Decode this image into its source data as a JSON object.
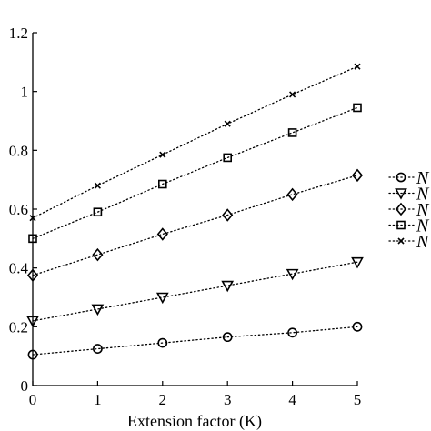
{
  "chart_data": {
    "type": "line",
    "xlabel": "Extension factor (K)",
    "ylabel": "",
    "xlim": [
      0,
      5
    ],
    "ylim": [
      0,
      1.2
    ],
    "x_ticks": [
      "0",
      "1",
      "2",
      "3",
      "4",
      "5"
    ],
    "y_ticks": [
      "0",
      "0.2",
      "0.4",
      "0.6",
      "0.8",
      "1",
      "1.2"
    ],
    "grid": false,
    "legend_position": "right",
    "x": [
      0,
      1,
      2,
      3,
      4,
      5
    ],
    "series": [
      {
        "name": "N",
        "marker": "circle",
        "line_style": "dotted",
        "values": [
          0.105,
          0.125,
          0.145,
          0.165,
          0.18,
          0.2
        ]
      },
      {
        "name": "N",
        "marker": "triangle-down",
        "line_style": "dotted",
        "values": [
          0.22,
          0.26,
          0.3,
          0.34,
          0.38,
          0.42
        ]
      },
      {
        "name": "N",
        "marker": "diamond",
        "line_style": "dotted",
        "values": [
          0.375,
          0.445,
          0.515,
          0.58,
          0.65,
          0.715
        ]
      },
      {
        "name": "N",
        "marker": "square",
        "line_style": "dotted",
        "values": [
          0.5,
          0.59,
          0.685,
          0.775,
          0.86,
          0.945
        ]
      },
      {
        "name": "N",
        "marker": "x",
        "line_style": "dotted",
        "values": [
          0.57,
          0.68,
          0.785,
          0.89,
          0.99,
          1.085
        ]
      }
    ]
  }
}
